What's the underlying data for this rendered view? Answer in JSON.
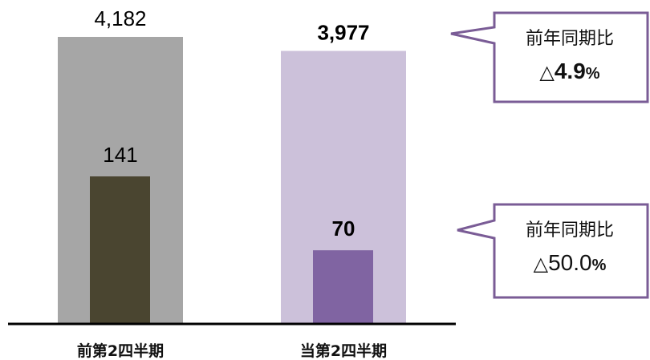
{
  "chart_data": {
    "type": "bar",
    "categories": [
      "前第2四半期",
      "当第2四半期"
    ],
    "series": [
      {
        "values": [
          4182,
          3977
        ]
      },
      {
        "values": [
          141,
          70
        ]
      }
    ],
    "value_labels": {
      "outer": [
        "4,182",
        "3,977"
      ],
      "inner": [
        "141",
        "70"
      ]
    },
    "colors": {
      "outer": [
        "#a6a6a6",
        "#ccc1da"
      ],
      "inner": [
        "#4a4530",
        "#8064a2"
      ],
      "callout_border": "#7a5c96",
      "axis": "#000000"
    }
  },
  "callouts": [
    {
      "line1": "前年同期比",
      "triangle": "△",
      "value": "4.9",
      "unit": "%"
    },
    {
      "line1": "前年同期比",
      "triangle": "△",
      "value": "50.0",
      "unit": "%"
    }
  ]
}
